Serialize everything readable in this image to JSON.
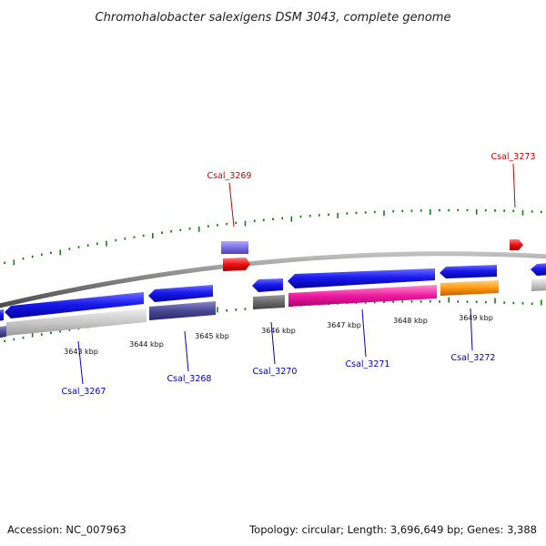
{
  "title": "Chromohalobacter salexigens DSM 3043, complete genome",
  "footer": {
    "accession": "Accession: NC_007963",
    "summary": "Topology: circular; Length: 3,696,649 bp; Genes: 3,388"
  },
  "colors": {
    "backbone": "#8a8a8a",
    "tick": "#1f7a1f",
    "label_forward": "#cc0000",
    "label_reverse": "#0000bb"
  },
  "tick_labels": [
    "3643 kbp",
    "3644 kbp",
    "3645 kbp",
    "3646 kbp",
    "3647 kbp",
    "3648 kbp",
    "3649 kbp"
  ],
  "gene_labels": {
    "top": [
      "Csal_3269",
      "Csal_3273"
    ],
    "bottom": [
      "Csal_3267",
      "Csal_3268",
      "Csal_3270",
      "Csal_3271",
      "Csal_3272"
    ]
  }
}
